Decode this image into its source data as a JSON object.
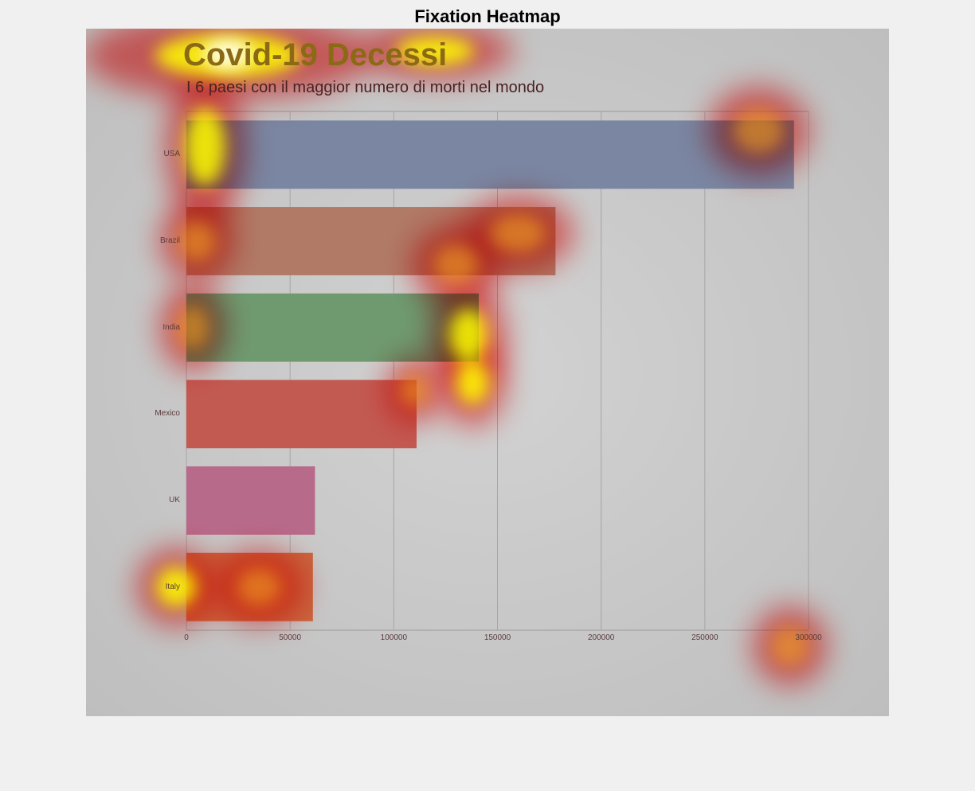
{
  "figure": {
    "title": "Fixation Heatmap"
  },
  "chart_data": {
    "type": "bar",
    "orientation": "horizontal",
    "title": "Covid-19 Decessi",
    "subtitle": "I 6 paesi con il maggior numero di morti nel mondo",
    "xlabel": "",
    "ylabel": "",
    "categories": [
      "USA",
      "Brazil",
      "India",
      "Mexico",
      "UK",
      "Italy"
    ],
    "values": [
      293000,
      178000,
      141000,
      111000,
      62000,
      61000
    ],
    "bar_colors": [
      "#7a86a2",
      "#b07a66",
      "#6f9a70",
      "#c25a52",
      "#b86a8a",
      "#c8653e"
    ],
    "xlim": [
      0,
      300000
    ],
    "xticks": [
      0,
      50000,
      100000,
      150000,
      200000,
      250000,
      300000
    ],
    "xtick_labels": [
      "0",
      "50000",
      "100000",
      "150000",
      "200000",
      "250000",
      "300000"
    ],
    "grid": true,
    "legend": "none"
  },
  "heatmap_overlay": {
    "colormap": [
      "#ff0000",
      "#ffff00",
      "#ffffff"
    ],
    "description_colors": {
      "low": "#ff3030",
      "mid": "#ffee22",
      "high": "#ffffff"
    }
  }
}
